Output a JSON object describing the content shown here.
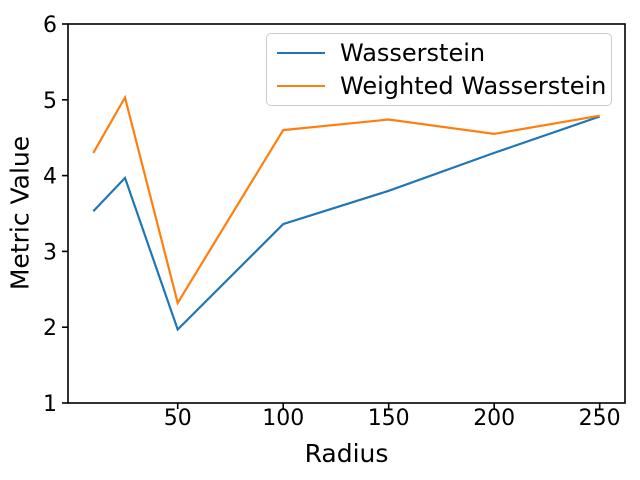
{
  "chart_data": {
    "type": "line",
    "title": "",
    "xlabel": "Radius",
    "ylabel": "Metric Value",
    "x": [
      10,
      25,
      50,
      100,
      150,
      200,
      250
    ],
    "series": [
      {
        "name": "Wasserstein",
        "color": "#1f77b4",
        "values": [
          3.53,
          3.97,
          1.97,
          3.36,
          3.8,
          4.3,
          4.78
        ]
      },
      {
        "name": "Weighted Wasserstein",
        "color": "#ff7f0e",
        "values": [
          4.3,
          5.03,
          2.32,
          4.6,
          4.74,
          4.55,
          4.79
        ]
      }
    ],
    "xlim": [
      -2,
      262
    ],
    "ylim": [
      1,
      6
    ],
    "x_ticks": [
      50,
      100,
      150,
      200,
      250
    ],
    "y_ticks": [
      1,
      2,
      3,
      4,
      5,
      6
    ],
    "grid": false,
    "legend_position": "upper right",
    "axis_color": "#000000"
  }
}
